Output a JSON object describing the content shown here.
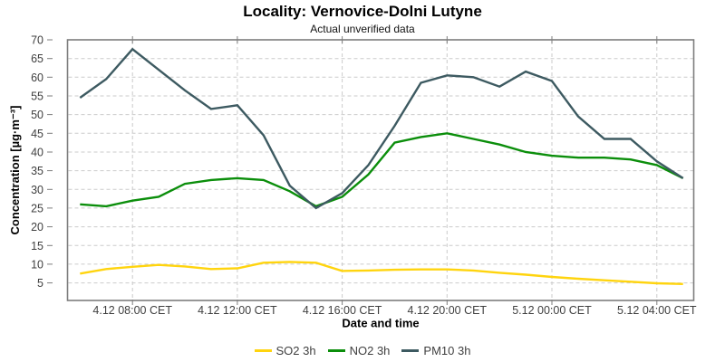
{
  "chart": {
    "title": "Locality: Vernovice-Dolni Lutyne",
    "subtitle": "Actual unverified data",
    "x_axis_title": "Date and time",
    "y_axis_title": "Concentration [µg·m⁻³]"
  },
  "chart_data": {
    "type": "line",
    "title": "Locality: Vernovice-Dolni Lutyne",
    "subtitle": "Actual unverified data",
    "xlabel": "Date and time",
    "ylabel": "Concentration [µg·m⁻³]",
    "ylim": [
      5,
      70
    ],
    "y_ticks": [
      5,
      10,
      15,
      20,
      25,
      30,
      35,
      40,
      45,
      50,
      55,
      60,
      65,
      70
    ],
    "grid": "dashed",
    "legend_position": "bottom",
    "x": [
      "4.12 06:00",
      "4.12 07:00",
      "4.12 08:00",
      "4.12 09:00",
      "4.12 10:00",
      "4.12 11:00",
      "4.12 12:00",
      "4.12 13:00",
      "4.12 14:00",
      "4.12 15:00",
      "4.12 16:00",
      "4.12 17:00",
      "4.12 18:00",
      "4.12 19:00",
      "4.12 20:00",
      "4.12 21:00",
      "4.12 22:00",
      "4.12 23:00",
      "5.12 00:00",
      "5.12 01:00",
      "5.12 02:00",
      "5.12 03:00",
      "5.12 04:00",
      "5.12 05:00"
    ],
    "x_tick_labels": [
      "4.12 08:00 CET",
      "4.12 12:00 CET",
      "4.12 16:00 CET",
      "4.12 20:00 CET",
      "5.12 00:00 CET",
      "5.12 04:00 CET"
    ],
    "x_tick_positions": [
      2,
      6,
      10,
      14,
      18,
      22
    ],
    "series": [
      {
        "name": "SO2 3h",
        "color": "#FFD40E",
        "values": [
          7.5,
          8.7,
          9.3,
          9.8,
          9.4,
          8.7,
          8.9,
          10.4,
          10.6,
          10.4,
          8.2,
          8.3,
          8.5,
          8.6,
          8.6,
          8.3,
          7.7,
          7.2,
          6.6,
          6.1,
          5.7,
          5.3,
          4.9,
          4.7
        ]
      },
      {
        "name": "NO2 3h",
        "color": "#0B8E0B",
        "values": [
          26,
          25.5,
          27,
          28,
          31.5,
          32.5,
          33,
          32.5,
          29.5,
          25.5,
          28,
          34,
          42.5,
          44,
          45,
          43.5,
          42,
          40,
          39,
          38.5,
          38.5,
          38,
          36.5,
          33
        ]
      },
      {
        "name": "PM10 3h",
        "color": "#3D5A61",
        "values": [
          54.5,
          59.5,
          67.5,
          62,
          56.5,
          51.5,
          52.5,
          44.5,
          31,
          25,
          29,
          36.5,
          47,
          58.5,
          60.5,
          60,
          57.5,
          61.5,
          59,
          49.5,
          43.5,
          43.5,
          37.5,
          33
        ]
      }
    ],
    "style": {
      "grid_color": "#cbcbcb",
      "frame_color": "#7d7d7d",
      "tick_label_color": "#3f3f3f",
      "background": "#ffffff"
    }
  }
}
